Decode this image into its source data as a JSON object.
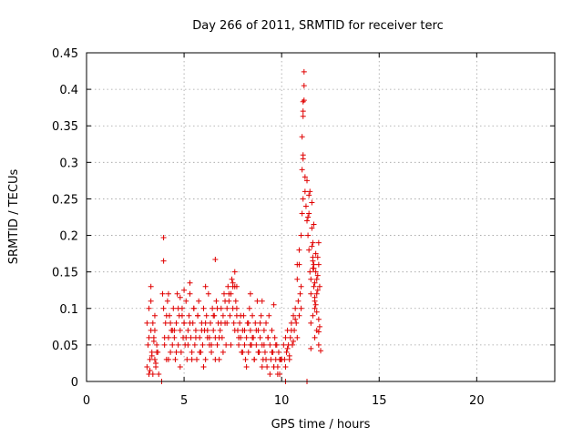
{
  "chart_data": {
    "type": "scatter",
    "title": "Day 266 of 2011, SRMTID for receiver terc",
    "xlabel": "GPS time / hours",
    "ylabel": "SRMTID / TECUs",
    "xlim": [
      0,
      24
    ],
    "ylim": [
      0,
      0.45
    ],
    "xticks": [
      0,
      5,
      10,
      15,
      20
    ],
    "xtick_labels": [
      "0",
      "5",
      "10",
      "15",
      "20"
    ],
    "yticks": [
      0,
      0.05,
      0.1,
      0.15,
      0.2,
      0.25,
      0.3,
      0.35,
      0.4,
      0.45
    ],
    "ytick_labels": [
      "0",
      "0.05",
      "0.1",
      "0.15",
      "0.2",
      "0.25",
      "0.3",
      "0.35",
      "0.4",
      "0.45"
    ],
    "grid": true,
    "marker": "+",
    "series": [
      {
        "name": "SRMTID",
        "color": "#e00000",
        "x": [
          3.1,
          3.15,
          3.2,
          3.2,
          3.25,
          3.3,
          3.3,
          3.35,
          3.4,
          3.45,
          3.5,
          3.5,
          3.55,
          3.6,
          3.65,
          3.7,
          3.1,
          3.2,
          3.3,
          3.4,
          3.5,
          3.6,
          3.25,
          3.35,
          3.45,
          3.55,
          3.9,
          3.95,
          4.0,
          4.05,
          4.1,
          4.15,
          4.2,
          4.25,
          4.3,
          4.35,
          4.4,
          4.45,
          4.5,
          4.55,
          4.6,
          4.65,
          4.7,
          4.75,
          4.8,
          4.85,
          4.9,
          4.95,
          5.0,
          5.05,
          5.1,
          5.15,
          5.2,
          5.25,
          5.3,
          5.35,
          5.4,
          5.45,
          5.5,
          5.55,
          5.6,
          5.65,
          5.7,
          5.75,
          5.8,
          5.85,
          5.9,
          5.95,
          6.0,
          6.05,
          6.1,
          6.15,
          6.2,
          6.25,
          6.3,
          6.35,
          6.4,
          6.45,
          6.5,
          6.55,
          6.6,
          6.65,
          6.7,
          6.75,
          6.8,
          6.85,
          6.9,
          6.95,
          7.0,
          7.05,
          7.1,
          7.15,
          7.2,
          7.25,
          7.3,
          7.35,
          7.4,
          7.45,
          7.5,
          7.55,
          7.6,
          7.65,
          7.7,
          7.75,
          7.8,
          7.85,
          7.9,
          7.95,
          8.0,
          8.05,
          8.1,
          8.15,
          8.2,
          8.25,
          8.3,
          8.35,
          8.4,
          8.45,
          8.5,
          8.55,
          8.6,
          8.65,
          8.7,
          8.75,
          8.8,
          8.85,
          8.9,
          8.95,
          9.0,
          9.05,
          9.1,
          9.15,
          9.2,
          9.25,
          9.3,
          9.35,
          9.4,
          9.45,
          9.5,
          9.55,
          9.6,
          9.65,
          9.7,
          9.75,
          9.8,
          9.85,
          9.9,
          9.95,
          4.0,
          4.2,
          4.4,
          4.6,
          4.8,
          5.0,
          5.2,
          5.4,
          5.6,
          5.8,
          6.0,
          6.2,
          6.4,
          6.6,
          6.8,
          7.0,
          7.2,
          7.4,
          7.6,
          7.8,
          8.0,
          8.2,
          8.4,
          8.6,
          8.8,
          9.0,
          9.2,
          9.4,
          9.6,
          9.8,
          4.1,
          4.3,
          4.5,
          4.7,
          4.9,
          5.1,
          5.3,
          5.5,
          5.7,
          5.9,
          6.1,
          6.3,
          6.5,
          6.7,
          6.9,
          7.1,
          7.3,
          7.5,
          7.7,
          7.9,
          8.1,
          8.3,
          8.5,
          8.7,
          8.9,
          9.1,
          9.3,
          9.5,
          9.7,
          9.9,
          3.95,
          3.95,
          6.6,
          7.6,
          7.7,
          7.5,
          5.3,
          5.0,
          4.2,
          4.8,
          6.1,
          8.4,
          9.0,
          9.6,
          10.0,
          3.85,
          10.1,
          10.15,
          10.2,
          10.25,
          10.3,
          10.35,
          10.4,
          10.45,
          10.5,
          10.55,
          10.6,
          10.65,
          10.7,
          10.75,
          10.8,
          10.85,
          10.9,
          10.95,
          11.0,
          10.2,
          10.3,
          10.4,
          10.5,
          10.6,
          10.7,
          10.8,
          10.9,
          11.0,
          10.8,
          10.9,
          11.0,
          11.05,
          11.1,
          11.05,
          11.1,
          11.1,
          11.05,
          11.1,
          11.1,
          11.15,
          11.15,
          11.1,
          11.15,
          11.2,
          11.2,
          11.25,
          11.3,
          11.35,
          11.4,
          11.45,
          11.5,
          11.5,
          11.55,
          11.6,
          11.6,
          11.65,
          11.65,
          11.7,
          11.7,
          11.75,
          11.8,
          11.8,
          11.85,
          11.9,
          11.9,
          11.95,
          11.5,
          11.6,
          11.7,
          11.8,
          11.9,
          11.55,
          11.65,
          11.75,
          11.85,
          11.3,
          11.4,
          11.45,
          11.35,
          11.55,
          11.6,
          11.65,
          11.7,
          11.75,
          11.8,
          11.9,
          11.95,
          11.5,
          11.7,
          11.85,
          11.6,
          11.4,
          10.2,
          11.3,
          12.0,
          11.9
        ],
        "y": [
          0.02,
          0.05,
          0.1,
          0.01,
          0.03,
          0.07,
          0.13,
          0.04,
          0.01,
          0.06,
          0.09,
          0.03,
          0.02,
          0.05,
          0.04,
          0.01,
          0.08,
          0.06,
          0.11,
          0.08,
          0.07,
          0.04,
          0.015,
          0.035,
          0.055,
          0.025,
          0.12,
          0.1,
          0.05,
          0.08,
          0.03,
          0.11,
          0.06,
          0.09,
          0.04,
          0.07,
          0.05,
          0.1,
          0.06,
          0.03,
          0.08,
          0.12,
          0.05,
          0.09,
          0.07,
          0.04,
          0.1,
          0.06,
          0.08,
          0.05,
          0.11,
          0.03,
          0.07,
          0.09,
          0.12,
          0.06,
          0.04,
          0.08,
          0.1,
          0.05,
          0.07,
          0.03,
          0.09,
          0.11,
          0.06,
          0.04,
          0.08,
          0.05,
          0.1,
          0.07,
          0.03,
          0.09,
          0.06,
          0.12,
          0.05,
          0.08,
          0.04,
          0.1,
          0.07,
          0.09,
          0.06,
          0.11,
          0.05,
          0.08,
          0.03,
          0.07,
          0.1,
          0.06,
          0.09,
          0.12,
          0.08,
          0.05,
          0.1,
          0.13,
          0.11,
          0.09,
          0.12,
          0.14,
          0.1,
          0.08,
          0.13,
          0.11,
          0.09,
          0.07,
          0.05,
          0.08,
          0.06,
          0.04,
          0.07,
          0.09,
          0.05,
          0.03,
          0.06,
          0.08,
          0.04,
          0.1,
          0.07,
          0.05,
          0.09,
          0.06,
          0.03,
          0.08,
          0.05,
          0.11,
          0.07,
          0.04,
          0.06,
          0.09,
          0.05,
          0.03,
          0.07,
          0.04,
          0.08,
          0.02,
          0.06,
          0.09,
          0.05,
          0.03,
          0.07,
          0.04,
          0.02,
          0.06,
          0.03,
          0.05,
          0.02,
          0.04,
          0.01,
          0.03,
          0.06,
          0.03,
          0.07,
          0.04,
          0.02,
          0.08,
          0.05,
          0.03,
          0.06,
          0.04,
          0.02,
          0.07,
          0.05,
          0.03,
          0.06,
          0.04,
          0.08,
          0.05,
          0.07,
          0.06,
          0.04,
          0.02,
          0.05,
          0.03,
          0.04,
          0.02,
          0.03,
          0.01,
          0.02,
          0.01,
          0.09,
          0.08,
          0.07,
          0.1,
          0.09,
          0.06,
          0.08,
          0.1,
          0.09,
          0.07,
          0.08,
          0.06,
          0.09,
          0.1,
          0.08,
          0.11,
          0.12,
          0.13,
          0.1,
          0.09,
          0.07,
          0.08,
          0.06,
          0.07,
          0.08,
          0.05,
          0.06,
          0.04,
          0.05,
          0.03,
          0.197,
          0.165,
          0.167,
          0.15,
          0.13,
          0.135,
          0.135,
          0.125,
          0.12,
          0.115,
          0.13,
          0.12,
          0.11,
          0.105,
          0.03,
          0.0,
          0.05,
          0.03,
          0.06,
          0.04,
          0.07,
          0.05,
          0.03,
          0.06,
          0.08,
          0.05,
          0.09,
          0.07,
          0.1,
          0.08,
          0.06,
          0.11,
          0.09,
          0.12,
          0.1,
          0.02,
          0.045,
          0.035,
          0.07,
          0.055,
          0.085,
          0.14,
          0.16,
          0.13,
          0.16,
          0.18,
          0.2,
          0.23,
          0.25,
          0.29,
          0.31,
          0.305,
          0.335,
          0.37,
          0.383,
          0.405,
          0.424,
          0.363,
          0.385,
          0.26,
          0.28,
          0.24,
          0.22,
          0.2,
          0.18,
          0.15,
          0.12,
          0.14,
          0.21,
          0.19,
          0.17,
          0.16,
          0.13,
          0.11,
          0.1,
          0.15,
          0.12,
          0.14,
          0.17,
          0.19,
          0.16,
          0.13,
          0.08,
          0.09,
          0.06,
          0.07,
          0.05,
          0.245,
          0.215,
          0.175,
          0.145,
          0.275,
          0.255,
          0.26,
          0.225,
          0.185,
          0.165,
          0.155,
          0.135,
          0.105,
          0.095,
          0.085,
          0.075,
          0.045,
          0.115,
          0.125,
          0.155,
          0.23,
          0.0,
          0.0,
          0.042,
          0.068
        ]
      }
    ]
  }
}
